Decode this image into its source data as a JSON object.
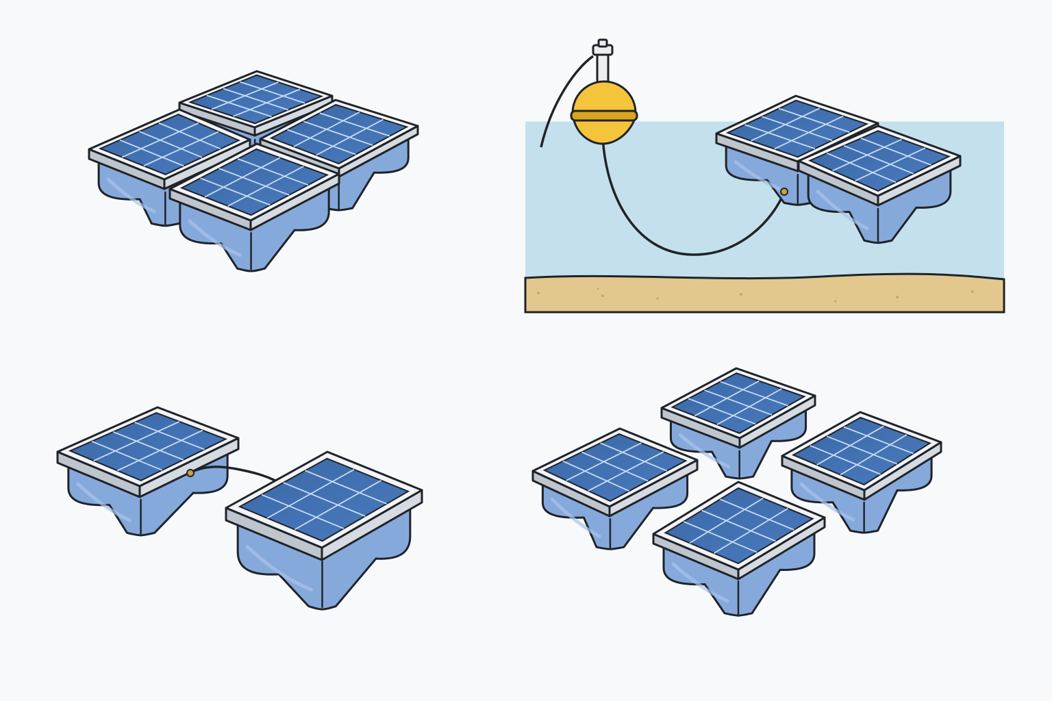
{
  "colors": {
    "background": "#f8f9fb",
    "outline": "#1f2328",
    "frame_top": "#f1f3f6",
    "frame_side": "#bfc5cd",
    "cell": "#3e6fb0",
    "cell_grid": "#c9dcf3",
    "float_body": "#86a9dc",
    "float_shadow": "#6f93c9",
    "water": "#c3e0ec",
    "seabed": "#e2c88d",
    "seabed_dots": "#caa866",
    "buoy": "#f4c43a",
    "buoy_band": "#d9a51e",
    "post": "#eceef1"
  },
  "panels": [
    {
      "id": "linked-array",
      "description_only": true
    },
    {
      "id": "moored-pair",
      "description_only": true
    },
    {
      "id": "cabled-pair",
      "description_only": true
    },
    {
      "id": "spaced-array",
      "description_only": true
    }
  ]
}
